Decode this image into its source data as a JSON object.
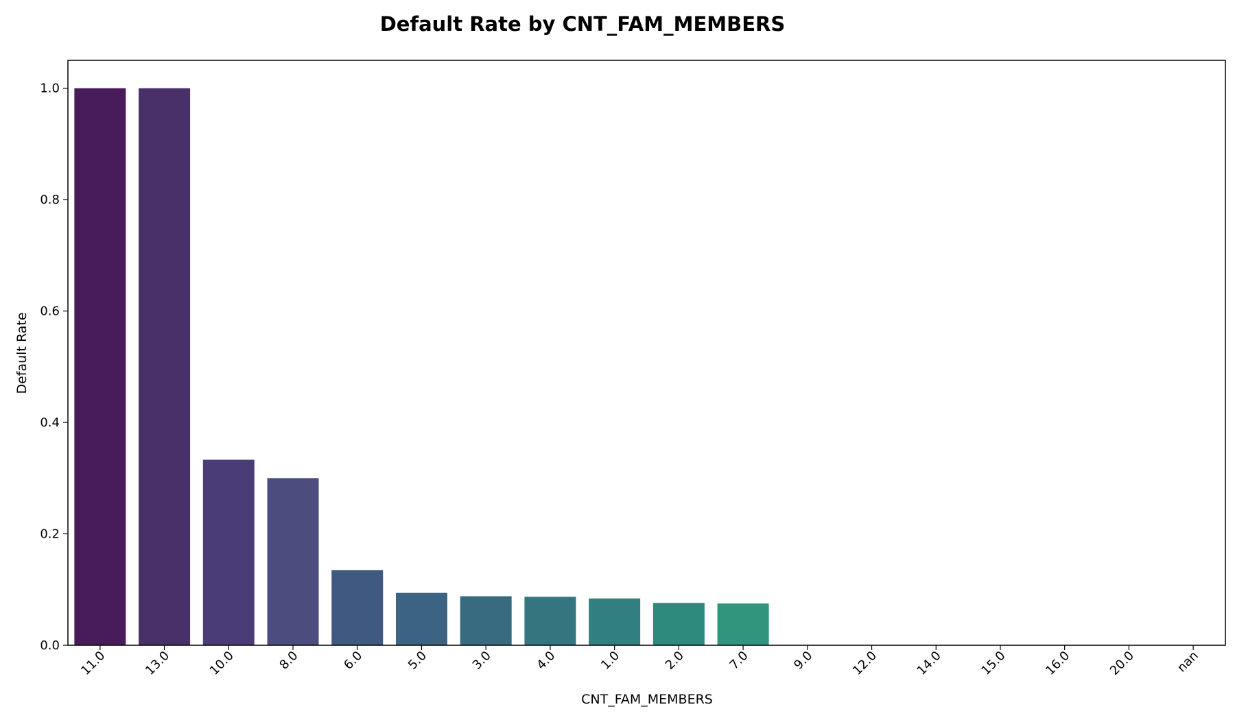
{
  "chart_data": {
    "type": "bar",
    "title": "Default Rate by CNT_FAM_MEMBERS",
    "xlabel": "CNT_FAM_MEMBERS",
    "ylabel": "Default Rate",
    "ylim": [
      0,
      1.05
    ],
    "yticks": [
      "0.0",
      "0.2",
      "0.4",
      "0.6",
      "0.8",
      "1.0"
    ],
    "grid": false,
    "legend": "none",
    "categories": [
      "11.0",
      "13.0",
      "10.0",
      "8.0",
      "6.0",
      "5.0",
      "3.0",
      "4.0",
      "1.0",
      "2.0",
      "7.0",
      "9.0",
      "12.0",
      "14.0",
      "15.0",
      "16.0",
      "20.0",
      "nan"
    ],
    "values": [
      1.0,
      1.0,
      0.333,
      0.3,
      0.135,
      0.094,
      0.088,
      0.087,
      0.084,
      0.076,
      0.075,
      0.0,
      0.0,
      0.0,
      0.0,
      0.0,
      0.0,
      0.0
    ],
    "colors": [
      "#481c5b",
      "#4a3069",
      "#4a3d77",
      "#4a4d7e",
      "#3f5981",
      "#3d6382",
      "#386b80",
      "#357580",
      "#317f7e",
      "#2d8a7c",
      "#30957c",
      "#3fa07a",
      "#4faa76",
      "#64b56f",
      "#7abe66",
      "#92c85c",
      "#aed14f",
      "#c9d845"
    ]
  }
}
